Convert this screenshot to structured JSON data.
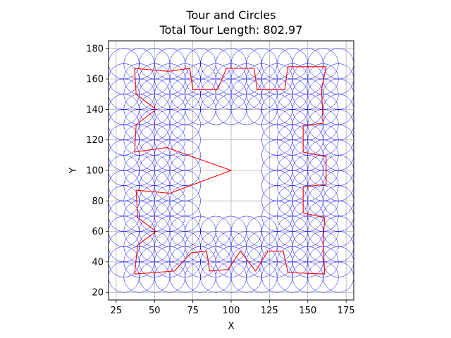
{
  "chart_data": {
    "type": "line",
    "title": "Tour and Circles",
    "subtitle": "Total Tour Length: 802.97",
    "xlabel": "X",
    "ylabel": "Y",
    "xlim": [
      20,
      180
    ],
    "ylim": [
      15,
      185
    ],
    "xticks": [
      25,
      50,
      75,
      100,
      125,
      150,
      175
    ],
    "yticks": [
      20,
      40,
      60,
      80,
      100,
      120,
      140,
      160,
      180
    ],
    "grid": true,
    "circle_radius": 10,
    "circle_color": "#0000ff",
    "tour_color": "#ff0000",
    "circle_spacing": 10,
    "frame_bounds": {
      "x": [
        30,
        170
      ],
      "y": [
        30,
        170
      ]
    },
    "inner_hole": {
      "x": [
        75,
        125
      ],
      "y": [
        65,
        140
      ]
    },
    "tour": [
      [
        37,
        167
      ],
      [
        59,
        165
      ],
      [
        73,
        167
      ],
      [
        75,
        153
      ],
      [
        91,
        153
      ],
      [
        97,
        167
      ],
      [
        115,
        167
      ],
      [
        117,
        153
      ],
      [
        135,
        153
      ],
      [
        137,
        168
      ],
      [
        162,
        168
      ],
      [
        159,
        153
      ],
      [
        160,
        131
      ],
      [
        147,
        129
      ],
      [
        147,
        112
      ],
      [
        162,
        109
      ],
      [
        162,
        91
      ],
      [
        147,
        89
      ],
      [
        147,
        72
      ],
      [
        161,
        69
      ],
      [
        160,
        53
      ],
      [
        161,
        32
      ],
      [
        137,
        33
      ],
      [
        134,
        47
      ],
      [
        124,
        47
      ],
      [
        116,
        34
      ],
      [
        106,
        47
      ],
      [
        98,
        35
      ],
      [
        86,
        34
      ],
      [
        84,
        47
      ],
      [
        74,
        46
      ],
      [
        63,
        34
      ],
      [
        37,
        32
      ],
      [
        39,
        51
      ],
      [
        51,
        60
      ],
      [
        39,
        69
      ],
      [
        38,
        87
      ],
      [
        60,
        85
      ],
      [
        100,
        100
      ],
      [
        58,
        115
      ],
      [
        37,
        112
      ],
      [
        38,
        130
      ],
      [
        51,
        140
      ],
      [
        38,
        150
      ]
    ]
  }
}
